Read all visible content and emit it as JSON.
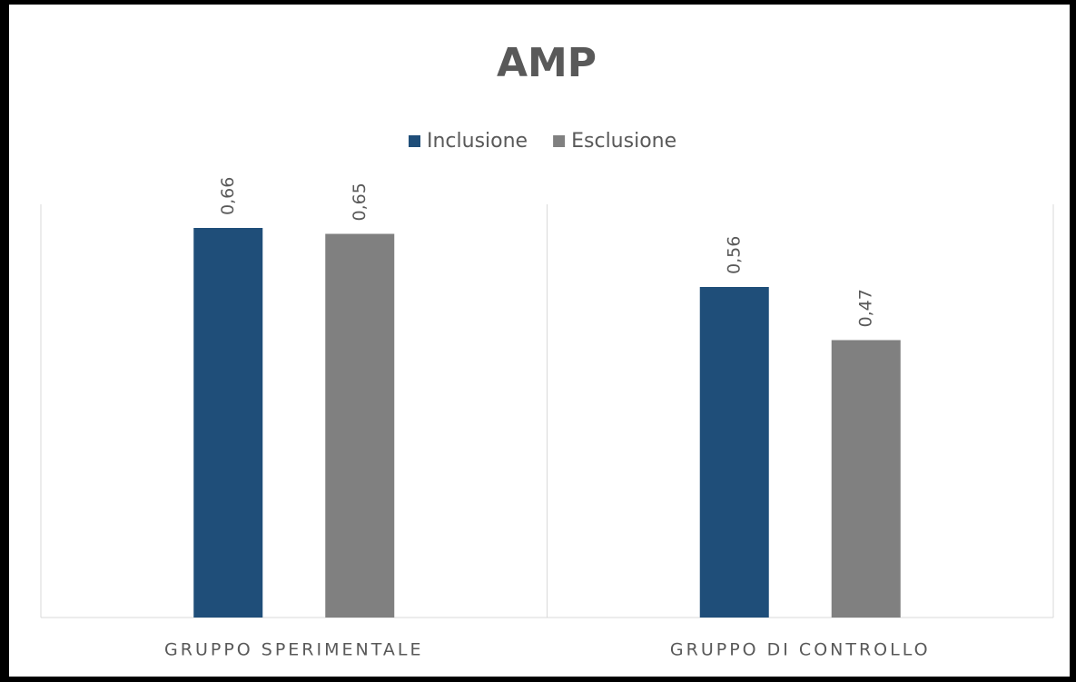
{
  "chart_data": {
    "type": "bar",
    "title": "AMP",
    "categories": [
      "GRUPPO SPERIMENTALE",
      "GRUPPO DI CONTROLLO"
    ],
    "series": [
      {
        "name": "Inclusione",
        "color": "#1f4e79",
        "values": [
          0.66,
          0.56
        ],
        "value_labels": [
          "0,66",
          "0,56"
        ]
      },
      {
        "name": "Esclusione",
        "color": "#808080",
        "values": [
          0.65,
          0.47
        ],
        "value_labels": [
          "0,65",
          "0,47"
        ]
      }
    ],
    "ylim": [
      0,
      0.7
    ],
    "legend": "top"
  }
}
